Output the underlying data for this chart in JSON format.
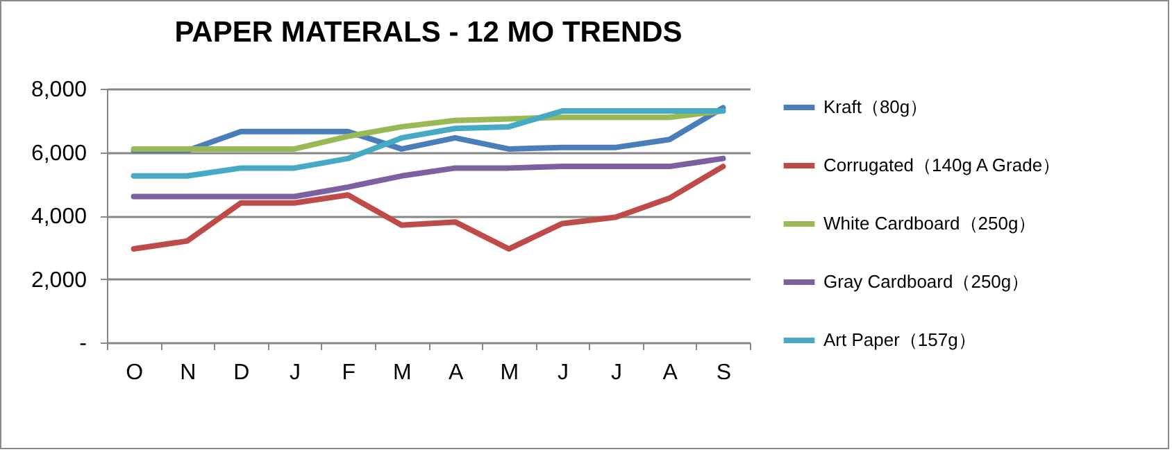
{
  "chart_data": {
    "type": "line",
    "title": "PAPER MATERALS - 12 MO TRENDS",
    "categories": [
      "O",
      "N",
      "D",
      "J",
      "F",
      "M",
      "A",
      "M",
      "J",
      "J",
      "A",
      "S"
    ],
    "series": [
      {
        "name": "Kraft（80g）",
        "color": "#4a7ebb",
        "values": [
          6050,
          6050,
          6650,
          6650,
          6650,
          6100,
          6450,
          6100,
          6150,
          6150,
          6400,
          7400
        ]
      },
      {
        "name": "Corrugated（140g A Grade）",
        "color": "#be4b48",
        "values": [
          2950,
          3200,
          4400,
          4400,
          4650,
          3700,
          3800,
          2950,
          3750,
          3950,
          4550,
          5550
        ]
      },
      {
        "name": "White Cardboard（250g）",
        "color": "#98b954",
        "values": [
          6100,
          6100,
          6100,
          6100,
          6500,
          6800,
          7000,
          7050,
          7100,
          7100,
          7100,
          7300
        ]
      },
      {
        "name": "Gray Cardboard（250g）",
        "color": "#7d60a0",
        "values": [
          4600,
          4600,
          4600,
          4600,
          4900,
          5250,
          5500,
          5500,
          5550,
          5550,
          5550,
          5800
        ]
      },
      {
        "name": "Art Paper（157g）",
        "color": "#46aac5",
        "values": [
          5250,
          5250,
          5500,
          5500,
          5800,
          6450,
          6750,
          6800,
          7300,
          7300,
          7300,
          7300
        ]
      }
    ],
    "ylim": [
      0,
      8000
    ],
    "yticks": [
      {
        "value": 0,
        "label": "-"
      },
      {
        "value": 2000,
        "label": "2,000"
      },
      {
        "value": 4000,
        "label": "4,000"
      },
      {
        "value": 6000,
        "label": "6,000"
      },
      {
        "value": 8000,
        "label": "8,000"
      }
    ],
    "grid": "y",
    "legend": "right",
    "marker": "none",
    "line_style": "solid"
  }
}
